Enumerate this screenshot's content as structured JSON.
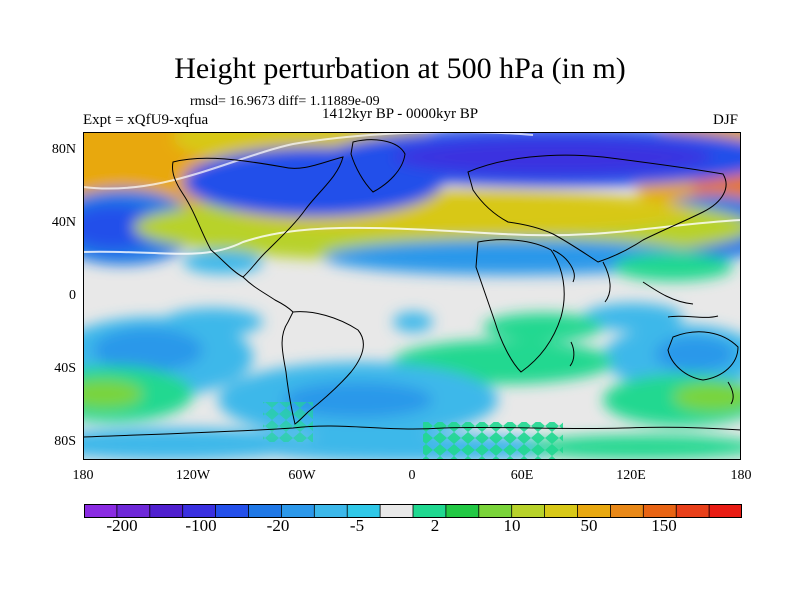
{
  "title": "Height perturbation at 500 hPa (in m)",
  "stats": "rmsd= 16.9673 diff= 1.11889e-09",
  "experiment": "Expt = xQfU9-xqfua",
  "period": "1412kyr BP - 0000kyr BP",
  "season": "DJF",
  "axes": {
    "y_ticks": [
      "80N",
      "40N",
      "0",
      "40S",
      "80S"
    ],
    "x_ticks": [
      "180",
      "120W",
      "60W",
      "0",
      "60E",
      "120E",
      "180"
    ]
  },
  "colorbar": {
    "colors": [
      "#8a2be2",
      "#6e28d8",
      "#5020cf",
      "#3a30e0",
      "#2450ea",
      "#1f78e6",
      "#2c98ea",
      "#3cb8ea",
      "#30c8e8",
      "#e8e8e8",
      "#20d890",
      "#22c844",
      "#7ad43a",
      "#b8d22a",
      "#d8c818",
      "#e8a810",
      "#e88818",
      "#e86414",
      "#e8401a",
      "#e81c14"
    ],
    "labels": [
      "-200",
      "-100",
      "-20",
      "-5",
      "2",
      "10",
      "50",
      "150"
    ]
  }
}
